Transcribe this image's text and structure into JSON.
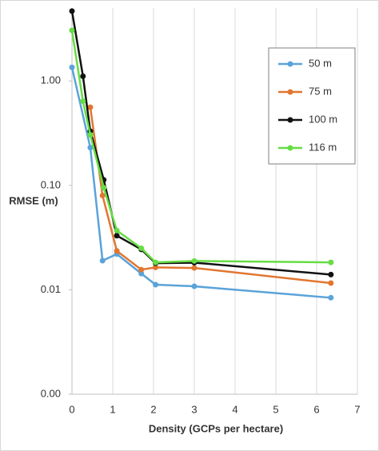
{
  "chart_data": {
    "type": "line",
    "x_label": "Density (GCPs per hectare)",
    "y_label": "RMSE (m)",
    "xlim": [
      0,
      7
    ],
    "xticks": [
      0,
      1,
      2,
      3,
      4,
      5,
      6,
      7
    ],
    "ylim": [
      0.001,
      5
    ],
    "log_y": true,
    "yticks": [
      {
        "value": 0.001,
        "label": "0.00"
      },
      0.01,
      {
        "value": 0.1,
        "label": "0.10"
      },
      {
        "value": 1,
        "label": "1.00"
      }
    ],
    "grid_x": true,
    "legend": "upper right",
    "series": [
      {
        "name": "50 m",
        "color": "#5ba3d9",
        "x": [
          0,
          0.45,
          0.75,
          1.1,
          1.7,
          2.05,
          3,
          6.35
        ],
        "values": [
          1.35,
          0.23,
          0.019,
          0.022,
          0.0143,
          0.0112,
          0.0108,
          0.0084
        ]
      },
      {
        "name": "75 m",
        "color": "#e2762f",
        "x": [
          0.45,
          0.75,
          1.1,
          1.7,
          2.05,
          3,
          6.35
        ],
        "values": [
          0.56,
          0.08,
          0.0236,
          0.0156,
          0.0164,
          0.0162,
          0.0116
        ]
      },
      {
        "name": "100 m",
        "color": "#111111",
        "x": [
          0,
          0.27,
          0.45,
          0.78,
          1.1,
          1.7,
          2.05,
          3,
          6.35
        ],
        "values": [
          4.67,
          1.11,
          0.33,
          0.113,
          0.033,
          0.0244,
          0.018,
          0.0182,
          0.014
        ]
      },
      {
        "name": "116 m",
        "color": "#66dd44",
        "x": [
          0,
          0.27,
          0.45,
          0.78,
          1.1,
          1.7,
          2.05,
          3,
          6.35
        ],
        "values": [
          3.05,
          0.64,
          0.305,
          0.095,
          0.037,
          0.025,
          0.0183,
          0.0189,
          0.0183
        ]
      }
    ]
  }
}
